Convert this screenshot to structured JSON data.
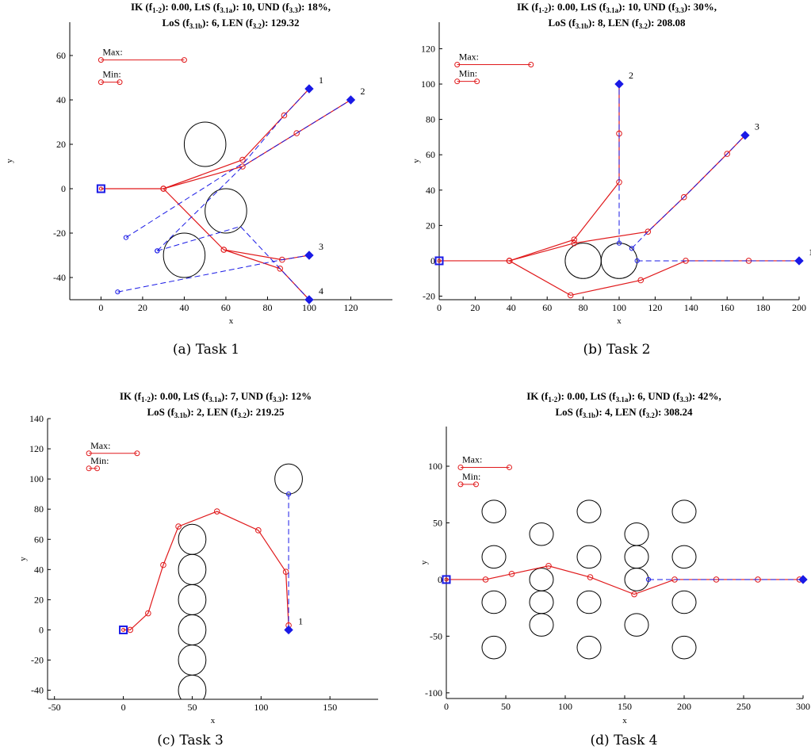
{
  "chart_data": [
    {
      "type": "line",
      "caption": "(a)  Task 1",
      "title_line1": "IK (f<sub>1-2</sub>): 0.00, LtS (f<sub>3.1a</sub>): 10, UND (f<sub>3.3</sub>): 18%,",
      "title_line2": "LoS (f<sub>3.1b</sub>): 6, LEN (f<sub>3.2</sub>): 129.32",
      "xlabel": "x",
      "ylabel": "y",
      "xlim": [
        -15,
        140
      ],
      "ylim": [
        -50,
        75
      ],
      "xticks": [
        0,
        20,
        40,
        60,
        80,
        100,
        120
      ],
      "yticks": [
        -40,
        -20,
        0,
        20,
        40,
        60
      ],
      "legend": {
        "max_label": "Max:",
        "min_label": "Min:",
        "max_line": [
          [
            0,
            58
          ],
          [
            40,
            58
          ]
        ],
        "min_line": [
          [
            0,
            48
          ],
          [
            9,
            48
          ]
        ]
      },
      "obstacles": [
        {
          "cx": 50,
          "cy": 20,
          "r": 10
        },
        {
          "cx": 60,
          "cy": -10,
          "r": 10
        },
        {
          "cx": 40,
          "cy": -30,
          "r": 10
        }
      ],
      "origin": [
        0,
        0
      ],
      "targets": [
        {
          "label": "1",
          "x": 100,
          "y": 45
        },
        {
          "label": "2",
          "x": 120,
          "y": 40
        },
        {
          "label": "3",
          "x": 100,
          "y": -30
        },
        {
          "label": "4",
          "x": 100,
          "y": -50
        }
      ],
      "red_paths": [
        [
          [
            0,
            0
          ],
          [
            30,
            0
          ],
          [
            68,
            13
          ],
          [
            88,
            33
          ],
          [
            100,
            45
          ]
        ],
        [
          [
            30,
            0
          ],
          [
            68,
            10
          ],
          [
            94,
            25
          ],
          [
            120,
            40
          ]
        ],
        [
          [
            30,
            0
          ],
          [
            59,
            -27.5
          ],
          [
            87,
            -32
          ],
          [
            100,
            -30
          ]
        ],
        [
          [
            59,
            -27.5
          ],
          [
            86,
            -36
          ],
          [
            100,
            -50
          ]
        ]
      ],
      "blue_paths": [
        [
          [
            12,
            -22
          ],
          [
            69,
            12
          ],
          [
            88,
            33
          ],
          [
            100,
            45
          ]
        ],
        [
          [
            27,
            -28
          ],
          [
            68,
            10
          ],
          [
            94,
            25
          ],
          [
            120,
            40
          ]
        ],
        [
          [
            8,
            -46.5
          ],
          [
            87,
            -32
          ],
          [
            100,
            -30
          ]
        ],
        [
          [
            27,
            -28
          ],
          [
            67,
            -17
          ],
          [
            86,
            -36
          ],
          [
            100,
            -50
          ]
        ]
      ]
    },
    {
      "type": "line",
      "caption": "(b)  Task 2",
      "title_line1": "IK (f<sub>1-2</sub>): 0.00, LtS (f<sub>3.1a</sub>): 10, UND (f<sub>3.3</sub>): 30%,",
      "title_line2": "LoS (f<sub>3.1b</sub>): 8, LEN (f<sub>3.2</sub>): 208.08",
      "xlabel": "x",
      "ylabel": "y",
      "xlim": [
        0,
        200
      ],
      "ylim": [
        -22,
        135
      ],
      "xticks": [
        0,
        20,
        40,
        60,
        80,
        100,
        120,
        140,
        160,
        180,
        200
      ],
      "yticks": [
        -20,
        0,
        20,
        40,
        60,
        80,
        100,
        120
      ],
      "legend": {
        "max_label": "Max:",
        "min_label": "Min:",
        "max_line": [
          [
            10,
            111
          ],
          [
            51,
            111
          ]
        ],
        "min_line": [
          [
            10,
            101.5
          ],
          [
            21,
            101.5
          ]
        ]
      },
      "obstacles": [
        {
          "cx": 80,
          "cy": 0,
          "r": 10
        },
        {
          "cx": 100,
          "cy": 0,
          "r": 10
        }
      ],
      "origin": [
        0,
        0
      ],
      "targets": [
        {
          "label": "1",
          "x": 200,
          "y": 0
        },
        {
          "label": "2",
          "x": 100,
          "y": 100
        },
        {
          "label": "3",
          "x": 170,
          "y": 71
        }
      ],
      "red_paths": [
        [
          [
            0,
            0
          ],
          [
            39,
            0
          ],
          [
            75,
            12
          ],
          [
            100,
            44.5
          ],
          [
            100,
            72
          ],
          [
            100,
            100
          ]
        ],
        [
          [
            39,
            0
          ],
          [
            75,
            10
          ],
          [
            116,
            16.5
          ],
          [
            136,
            36
          ],
          [
            160,
            60.5
          ],
          [
            170,
            71
          ]
        ],
        [
          [
            39,
            0
          ],
          [
            73,
            -19.5
          ],
          [
            112,
            -11
          ],
          [
            137,
            0
          ],
          [
            172,
            0
          ],
          [
            200,
            0
          ]
        ]
      ],
      "blue_paths": [
        [
          [
            100,
            10
          ],
          [
            100,
            44.5
          ],
          [
            100,
            72
          ],
          [
            100,
            100
          ]
        ],
        [
          [
            107,
            7
          ],
          [
            116,
            16.5
          ],
          [
            136,
            36
          ],
          [
            160,
            60.5
          ],
          [
            170,
            71
          ]
        ],
        [
          [
            110,
            0
          ],
          [
            137,
            0
          ],
          [
            172,
            0
          ],
          [
            200,
            0
          ]
        ]
      ]
    },
    {
      "type": "line",
      "caption": "(c)  Task 3",
      "title_line1": "IK (f<sub>1-2</sub>): 0.00, LtS (f<sub>3.1a</sub>): 7, UND (f<sub>3.3</sub>): 12%",
      "title_line2": "LoS (f<sub>3.1b</sub>): 2, LEN (f<sub>3.2</sub>): 219.25",
      "xlabel": "x",
      "ylabel": "y",
      "xlim": [
        -55,
        185
      ],
      "ylim": [
        -46,
        140
      ],
      "xticks": [
        -50,
        0,
        50,
        100,
        150
      ],
      "yticks": [
        -40,
        -20,
        0,
        20,
        40,
        60,
        80,
        100,
        120,
        140
      ],
      "legend": {
        "max_label": "Max:",
        "min_label": "Min:",
        "max_line": [
          [
            -25,
            117
          ],
          [
            10,
            117
          ]
        ],
        "min_line": [
          [
            -25,
            107
          ],
          [
            -19,
            107
          ]
        ]
      },
      "obstacles": [
        {
          "cx": 50,
          "cy": -40,
          "r": 10
        },
        {
          "cx": 50,
          "cy": -20,
          "r": 10
        },
        {
          "cx": 50,
          "cy": 0,
          "r": 10
        },
        {
          "cx": 50,
          "cy": 20,
          "r": 10
        },
        {
          "cx": 50,
          "cy": 40,
          "r": 10
        },
        {
          "cx": 50,
          "cy": 60,
          "r": 10
        },
        {
          "cx": 120,
          "cy": 100,
          "r": 10
        }
      ],
      "origin": [
        0,
        0
      ],
      "targets": [
        {
          "label": "1",
          "x": 120,
          "y": 0
        }
      ],
      "red_paths": [
        [
          [
            0,
            0
          ],
          [
            5,
            0
          ],
          [
            18,
            11
          ],
          [
            29,
            43
          ],
          [
            40,
            68.5
          ],
          [
            68,
            78.5
          ],
          [
            98,
            66
          ],
          [
            118,
            38.5
          ],
          [
            120,
            3
          ],
          [
            120,
            0
          ]
        ]
      ],
      "blue_paths": [
        [
          [
            120,
            90
          ],
          [
            120,
            38.5
          ],
          [
            120,
            3
          ],
          [
            120,
            0
          ]
        ]
      ]
    },
    {
      "type": "line",
      "caption": "(d)  Task 4",
      "title_line1": "IK (f<sub>1-2</sub>): 0.00, LtS (f<sub>3.1a</sub>): 6, UND (f<sub>3.3</sub>): 42%,",
      "title_line2": "LoS (f<sub>3.1b</sub>): 4, LEN (f<sub>3.2</sub>): 308.24",
      "xlabel": "x",
      "ylabel": "y",
      "xlim": [
        0,
        300
      ],
      "ylim": [
        -105,
        135
      ],
      "xticks": [
        0,
        50,
        100,
        150,
        200,
        250,
        300
      ],
      "yticks": [
        -100,
        -50,
        0,
        50,
        100
      ],
      "legend": {
        "max_label": "Max:",
        "min_label": "Min:",
        "max_line": [
          [
            12,
            99
          ],
          [
            53,
            99
          ]
        ],
        "min_line": [
          [
            12,
            84
          ],
          [
            25,
            84
          ]
        ]
      },
      "obstacles": [
        {
          "cx": 40,
          "cy": 60,
          "r": 10
        },
        {
          "cx": 40,
          "cy": 20,
          "r": 10
        },
        {
          "cx": 40,
          "cy": -20,
          "r": 10
        },
        {
          "cx": 40,
          "cy": -60,
          "r": 10
        },
        {
          "cx": 80,
          "cy": 40,
          "r": 10
        },
        {
          "cx": 80,
          "cy": 0,
          "r": 10
        },
        {
          "cx": 80,
          "cy": -20,
          "r": 10
        },
        {
          "cx": 80,
          "cy": -40,
          "r": 10
        },
        {
          "cx": 120,
          "cy": 60,
          "r": 10
        },
        {
          "cx": 120,
          "cy": 20,
          "r": 10
        },
        {
          "cx": 120,
          "cy": -20,
          "r": 10
        },
        {
          "cx": 120,
          "cy": -60,
          "r": 10
        },
        {
          "cx": 160,
          "cy": 40,
          "r": 10
        },
        {
          "cx": 160,
          "cy": 20,
          "r": 10
        },
        {
          "cx": 160,
          "cy": 0,
          "r": 10
        },
        {
          "cx": 160,
          "cy": -40,
          "r": 10
        },
        {
          "cx": 200,
          "cy": 60,
          "r": 10
        },
        {
          "cx": 200,
          "cy": 20,
          "r": 10
        },
        {
          "cx": 200,
          "cy": -20,
          "r": 10
        },
        {
          "cx": 200,
          "cy": -60,
          "r": 10
        }
      ],
      "origin": [
        0,
        0
      ],
      "targets": [
        {
          "label": "1",
          "x": 300,
          "y": 0
        }
      ],
      "red_paths": [
        [
          [
            0,
            0
          ],
          [
            33,
            0
          ],
          [
            55,
            5
          ],
          [
            86,
            12
          ],
          [
            121,
            2
          ],
          [
            158,
            -13
          ],
          [
            192,
            0
          ],
          [
            227,
            0
          ],
          [
            262,
            0
          ],
          [
            297,
            0
          ],
          [
            300,
            0
          ]
        ]
      ],
      "blue_paths": [
        [
          [
            170,
            0
          ],
          [
            192,
            0
          ],
          [
            227,
            0
          ],
          [
            262,
            0
          ],
          [
            297,
            0
          ],
          [
            300,
            0
          ]
        ]
      ]
    }
  ]
}
